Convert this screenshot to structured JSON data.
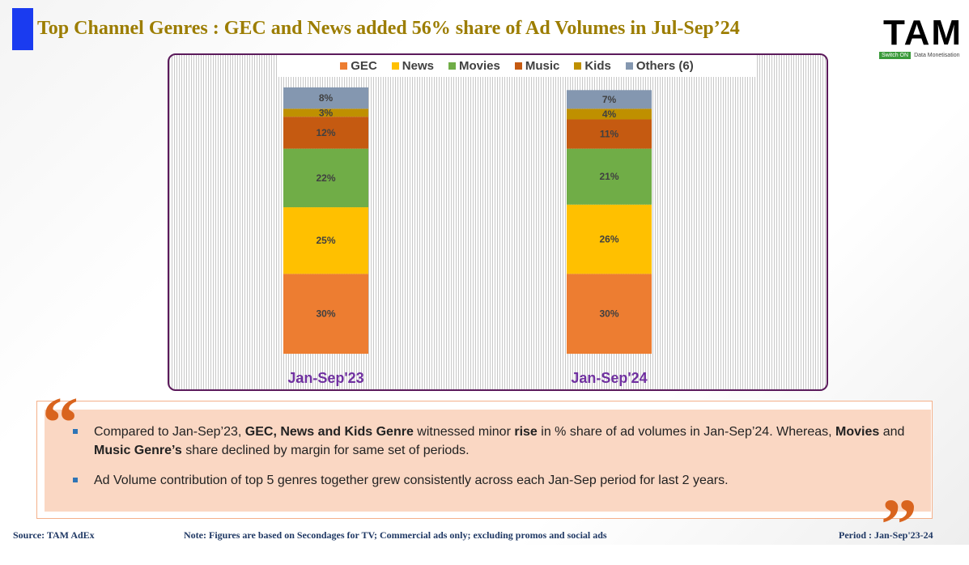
{
  "header": {
    "title": "Top Channel Genres : GEC and News added 56% share of Ad Volumes in Jul-Sep’24",
    "logo": {
      "brand": "TAM",
      "tag": "Switch ON",
      "subtitle": "Data Monetisation"
    }
  },
  "chart_data": {
    "type": "stacked-bar",
    "categories": [
      "Jan-Sep'23",
      "Jan-Sep'24"
    ],
    "series": [
      {
        "name": "GEC",
        "color": "#ed7d31",
        "values": [
          30,
          30
        ],
        "value_labels": [
          "30%",
          "30%"
        ]
      },
      {
        "name": "News",
        "color": "#ffc000",
        "values": [
          25,
          26
        ],
        "value_labels": [
          "25%",
          "26%"
        ]
      },
      {
        "name": "Movies",
        "color": "#70ad47",
        "values": [
          22,
          21
        ],
        "value_labels": [
          "22%",
          "21%"
        ]
      },
      {
        "name": "Music",
        "color": "#c55a11",
        "values": [
          12,
          11
        ],
        "value_labels": [
          "12%",
          "11%"
        ]
      },
      {
        "name": "Kids",
        "color": "#bf9000",
        "values": [
          3,
          4
        ],
        "value_labels": [
          "3%",
          "4%"
        ]
      },
      {
        "name": "Others (6)",
        "color": "#8497b0",
        "values": [
          8,
          7
        ],
        "value_labels": [
          "8%",
          "7%"
        ]
      }
    ],
    "ylim": [
      0,
      100
    ],
    "legend": "top"
  },
  "insights": {
    "quote_open": "“",
    "quote_close": "”",
    "bullets": [
      [
        {
          "text": "Compared to Jan-Sep’23, ",
          "bold": false
        },
        {
          "text": "GEC, News and Kids Genre",
          "bold": true
        },
        {
          "text": " witnessed minor ",
          "bold": false
        },
        {
          "text": "rise",
          "bold": true
        },
        {
          "text": " in % share of ad volumes in Jan-Sep’24. Whereas, ",
          "bold": false
        },
        {
          "text": "Movies",
          "bold": true
        },
        {
          "text": " and ",
          "bold": false
        },
        {
          "text": "Music Genre’s",
          "bold": true
        },
        {
          "text": " share declined by margin for same set of periods.",
          "bold": false
        }
      ],
      [
        {
          "text": "Ad Volume contribution of top 5 genres together grew consistently across each Jan-Sep period for last 2 years.",
          "bold": false
        }
      ]
    ]
  },
  "footer": {
    "source": "Source: TAM AdEx",
    "note": "Note: Figures are based on Secondages for TV; Commercial ads only; excluding promos and social ads",
    "period": "Period : Jan-Sep'23-24"
  }
}
